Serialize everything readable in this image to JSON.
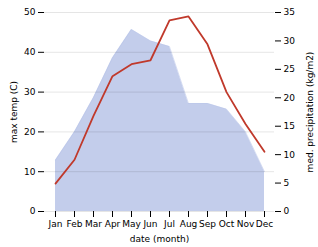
{
  "chart_data": {
    "type": "line",
    "categories": [
      "Jan",
      "Feb",
      "Mar",
      "Apr",
      "May",
      "Jun",
      "Jul",
      "Aug",
      "Sep",
      "Oct",
      "Nov",
      "Dec"
    ],
    "series": [
      {
        "type": "line",
        "color": "#c0392b",
        "values": [
          7,
          13,
          24,
          34,
          37,
          38,
          48,
          49,
          42,
          30,
          22,
          15
        ]
      },
      {
        "type": "area",
        "color": "#b8c4e8",
        "axis": "y2",
        "values": [
          9,
          14,
          20,
          27,
          32,
          30,
          29,
          19,
          19,
          18,
          14,
          7
        ]
      }
    ],
    "xlabel": "date (month)",
    "ylabel": "max temp (C)",
    "y2label": "med. precipitation (kg/m2)",
    "ylim": [
      0,
      50
    ],
    "yticks": [
      0,
      10,
      20,
      30,
      40,
      50
    ],
    "y2lim": [
      0,
      35
    ],
    "y2ticks": [
      0,
      5,
      10,
      15,
      20,
      25,
      30,
      35
    ],
    "grid": true
  }
}
